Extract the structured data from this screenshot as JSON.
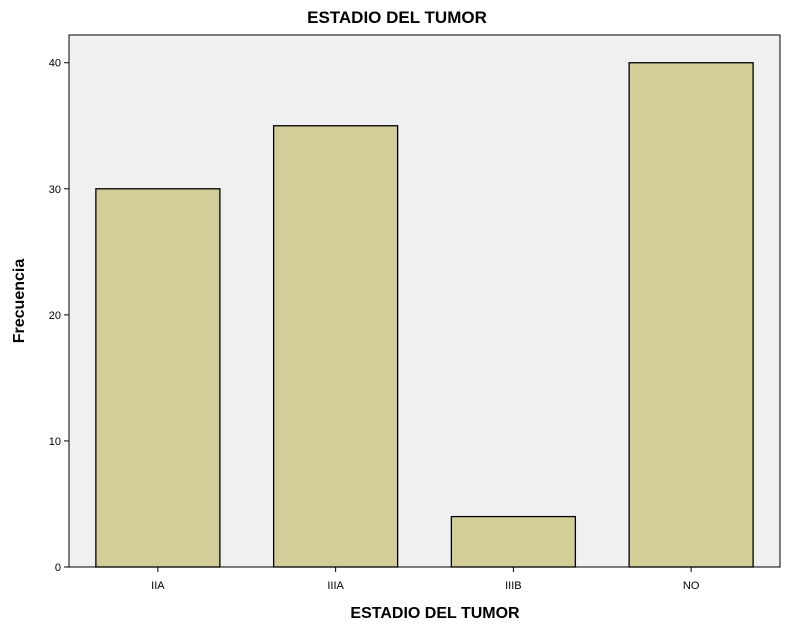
{
  "chart_data": {
    "type": "bar",
    "title": "ESTADIO DEL TUMOR",
    "xlabel": "ESTADIO DEL TUMOR",
    "ylabel": "Frecuencia",
    "categories": [
      "IIA",
      "IIIA",
      "IIIB",
      "NO"
    ],
    "values": [
      30,
      35,
      4,
      40
    ],
    "ylim": [
      0,
      42.2
    ],
    "yticks": [
      "0",
      "10",
      "20",
      "30",
      "40"
    ],
    "grid": false,
    "colors": {
      "plot_background": "#f0f0f0",
      "bar_fill": "#d3ce97",
      "bar_stroke": "#000000"
    }
  }
}
